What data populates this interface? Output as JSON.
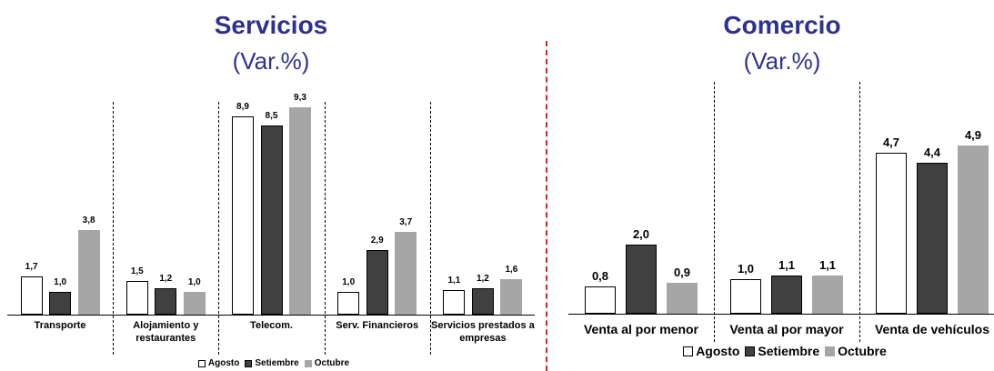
{
  "chart_data": [
    {
      "type": "bar",
      "title": "Servicios",
      "subtitle": "(Var.%)",
      "categories": [
        "Transporte",
        "Alojamiento y restaurantes",
        "Telecom.",
        "Serv. Financieros",
        "Servicios prestados a empresas"
      ],
      "series": [
        {
          "name": "Agosto",
          "color": "#ffffff",
          "values": [
            1.7,
            1.5,
            8.9,
            1.0,
            1.1
          ],
          "value_labels": [
            "1,7",
            "1,5",
            "8,9",
            "1,0",
            "1,1"
          ]
        },
        {
          "name": "Setiembre",
          "color": "#404040",
          "values": [
            1.0,
            1.2,
            8.5,
            2.9,
            1.2
          ],
          "value_labels": [
            "1,0",
            "1,2",
            "8,5",
            "2,9",
            "1,2"
          ]
        },
        {
          "name": "Octubre",
          "color": "#a6a6a6",
          "values": [
            3.8,
            1.0,
            9.3,
            3.7,
            1.6
          ],
          "value_labels": [
            "3,8",
            "1,0",
            "9,3",
            "3,7",
            "1,6"
          ]
        }
      ]
    },
    {
      "type": "bar",
      "title": "Comercio",
      "subtitle": "(Var.%)",
      "categories": [
        "Venta al por menor",
        "Venta al por mayor",
        "Venta de vehículos"
      ],
      "series": [
        {
          "name": "Agosto",
          "color": "#ffffff",
          "values": [
            0.8,
            1.0,
            4.7
          ],
          "value_labels": [
            "0,8",
            "1,0",
            "4,7"
          ]
        },
        {
          "name": "Setiembre",
          "color": "#404040",
          "values": [
            2.0,
            1.1,
            4.4
          ],
          "value_labels": [
            "2,0",
            "1,1",
            "4,4"
          ]
        },
        {
          "name": "Octubre",
          "color": "#a6a6a6",
          "values": [
            0.9,
            1.1,
            4.9
          ],
          "value_labels": [
            "0,9",
            "1,1",
            "4,9"
          ]
        }
      ]
    }
  ]
}
